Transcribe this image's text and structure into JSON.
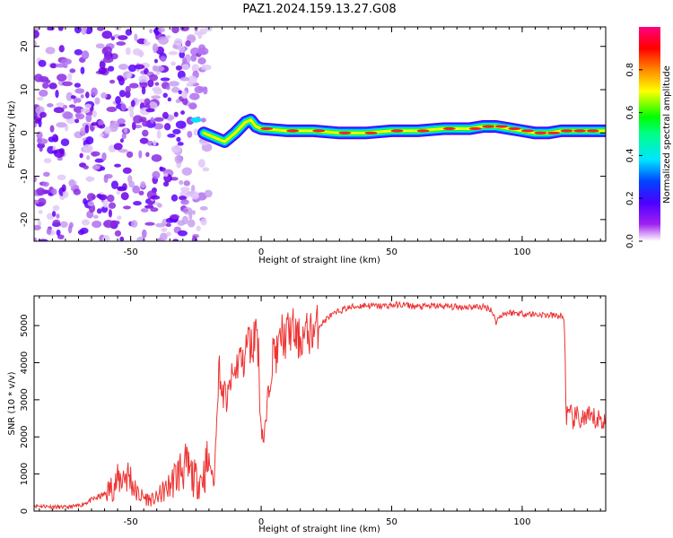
{
  "title": "PAZ1.2024.159.13.27.G08",
  "chart_data": [
    {
      "type": "heatmap",
      "xlabel": "Height of straight line (km)",
      "ylabel": "Frequency (Hz)",
      "xlim": [
        -87,
        132
      ],
      "ylim": [
        -25,
        24.5
      ],
      "xticks": [
        -50,
        0,
        50,
        100
      ],
      "yticks": [
        -20,
        -10,
        0,
        10,
        20
      ],
      "colorbar": {
        "label": "Normalized spectral amplitude",
        "range": [
          0,
          1
        ],
        "ticks": [
          "0.0",
          "0.2",
          "0.4",
          "0.6",
          "0.8"
        ],
        "colors": [
          "#ffffff",
          "#a020f0",
          "#4b00ff",
          "#0044ff",
          "#00e5ff",
          "#00ff00",
          "#ffff00",
          "#ff8800",
          "#ff0000",
          "#ff0080"
        ]
      },
      "description_points": {
        "noise_region_x": [
          -87,
          -20
        ],
        "signal_center_freq": [
          [
            -22,
            0
          ],
          [
            -18,
            -1
          ],
          [
            -14,
            -2
          ],
          [
            -10,
            0
          ],
          [
            -6,
            2.5
          ],
          [
            -4,
            3
          ],
          [
            -2,
            1.5
          ],
          [
            0,
            1
          ],
          [
            10,
            0.5
          ],
          [
            20,
            0.5
          ],
          [
            30,
            0
          ],
          [
            40,
            0
          ],
          [
            50,
            0.5
          ],
          [
            60,
            0.5
          ],
          [
            70,
            1
          ],
          [
            80,
            1
          ],
          [
            85,
            1.5
          ],
          [
            90,
            1.5
          ],
          [
            95,
            1
          ],
          [
            100,
            0.5
          ],
          [
            105,
            0
          ],
          [
            110,
            0
          ],
          [
            115,
            0.5
          ],
          [
            120,
            0.5
          ],
          [
            125,
            0.5
          ],
          [
            132,
            0.5
          ]
        ]
      }
    },
    {
      "type": "line",
      "xlabel": "Height of straight line (km)",
      "ylabel": "SNR (10 * v/v)",
      "xlim": [
        -87,
        132
      ],
      "ylim": [
        0,
        5800
      ],
      "xticks": [
        -50,
        0,
        50,
        100
      ],
      "yticks": [
        0,
        1000,
        2000,
        3000,
        4000,
        5000
      ],
      "color": "#ee3333",
      "series": [
        {
          "x": [
            -87,
            -80,
            -75,
            -70,
            -65,
            -60,
            -55,
            -52,
            -50,
            -48,
            -46,
            -44,
            -42,
            -40,
            -38,
            -36,
            -34,
            -32,
            -30,
            -28,
            -26,
            -24,
            -22,
            -20,
            -18,
            -17,
            -16,
            -15,
            -14,
            -13,
            -12,
            -11,
            -10,
            -9,
            -8,
            -7,
            -6,
            -5,
            -4,
            -3,
            -2,
            -1,
            -0.5,
            0,
            1,
            2,
            3,
            4,
            5,
            6,
            7,
            8,
            9,
            10,
            12,
            14,
            16,
            18,
            20,
            22,
            24,
            26,
            28,
            30,
            32,
            35,
            40,
            45,
            50,
            55,
            60,
            65,
            70,
            75,
            80,
            85,
            88,
            90,
            92,
            95,
            100,
            105,
            110,
            115,
            116,
            117,
            120,
            125,
            132
          ],
          "y": [
            150,
            120,
            100,
            140,
            300,
            450,
            800,
            1000,
            900,
            500,
            400,
            350,
            300,
            350,
            500,
            600,
            800,
            1000,
            1200,
            1100,
            900,
            800,
            1000,
            1400,
            700,
            2800,
            4000,
            3000,
            3200,
            2900,
            3400,
            3600,
            3700,
            4000,
            4200,
            3900,
            4300,
            4700,
            4400,
            4500,
            5200,
            4200,
            3000,
            2300,
            1900,
            2500,
            3400,
            4000,
            4400,
            4200,
            4500,
            4800,
            4600,
            4800,
            4900,
            4600,
            4700,
            4800,
            4850,
            5000,
            5100,
            5250,
            5300,
            5400,
            5450,
            5500,
            5550,
            5520,
            5550,
            5560,
            5500,
            5530,
            5520,
            5500,
            5510,
            5500,
            5450,
            5100,
            5300,
            5350,
            5330,
            5300,
            5280,
            5250,
            5200,
            2550,
            2500,
            2480,
            2450
          ]
        }
      ]
    }
  ]
}
